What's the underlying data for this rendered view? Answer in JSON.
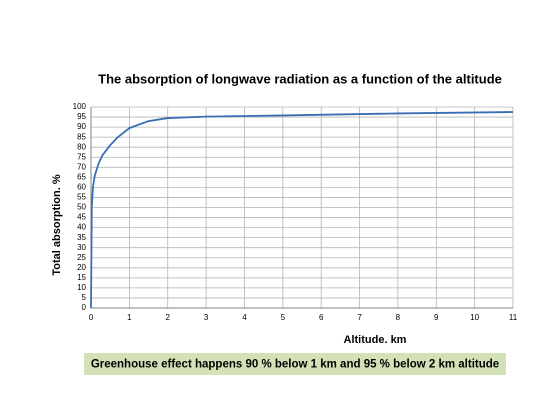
{
  "chart_data": {
    "type": "line",
    "title": "The absorption of longwave radiation as a function of the altitude",
    "x_label": "Altitude. km",
    "y_label": "Total absorption. %",
    "annotation": "Greenhouse effect happens 90 % below 1 km and 95 % below 2 km altitude",
    "x": [
      0,
      0.02,
      0.05,
      0.1,
      0.2,
      0.3,
      0.5,
      0.7,
      1,
      1.5,
      2,
      3,
      5,
      8,
      11
    ],
    "series": [
      {
        "name": "Total absorption",
        "color": "#3a6db3",
        "values": [
          0,
          50,
          60,
          66,
          72,
          76,
          81,
          85,
          89.5,
          93,
          94.5,
          95.2,
          95.8,
          96.8,
          97.5
        ]
      }
    ],
    "xlim": [
      0,
      11
    ],
    "xticks": [
      0,
      1,
      2,
      3,
      4,
      5,
      6,
      7,
      8,
      9,
      10,
      11
    ],
    "ylim": [
      0,
      100
    ],
    "yticks": [
      0,
      5,
      10,
      15,
      20,
      25,
      30,
      35,
      40,
      45,
      50,
      55,
      60,
      65,
      70,
      75,
      80,
      85,
      90,
      95,
      100
    ],
    "grid": true
  }
}
